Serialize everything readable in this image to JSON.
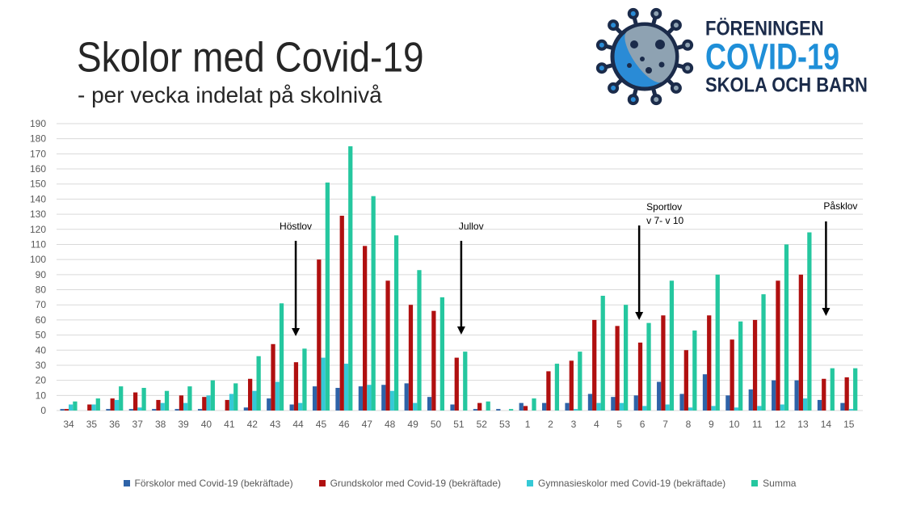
{
  "colors": {
    "grid": "#d9d9d9",
    "axis_text": "#595959",
    "annotation": "#000000",
    "logo_navy": "#1b2b4a",
    "logo_blue": "#1f8fd8",
    "logo_grey": "#8ea2b2"
  },
  "logo": {
    "icon": "virus-icon",
    "line1": "FÖRENINGEN",
    "line2": "COVID-19",
    "line3": "SKOLA OCH BARN"
  },
  "chart_data": {
    "type": "bar",
    "title": "Skolor med Covid-19",
    "subtitle": "- per vecka indelat på skolnivå",
    "xlabel": "",
    "ylabel": "",
    "ylim": [
      0,
      190
    ],
    "yticks": [
      0,
      10,
      20,
      30,
      40,
      50,
      60,
      70,
      80,
      90,
      100,
      110,
      120,
      130,
      140,
      150,
      160,
      170,
      180,
      190
    ],
    "grid": true,
    "legend": "bottom",
    "categories": [
      "34",
      "35",
      "36",
      "37",
      "38",
      "39",
      "40",
      "41",
      "42",
      "43",
      "44",
      "45",
      "46",
      "47",
      "48",
      "49",
      "50",
      "51",
      "52",
      "53",
      "1",
      "2",
      "3",
      "4",
      "5",
      "6",
      "7",
      "8",
      "9",
      "10",
      "11",
      "12",
      "13",
      "14",
      "15"
    ],
    "series": [
      {
        "name": "Förskolor med Covid-19 (bekräftade)",
        "color": "#2e63a8",
        "values": [
          1,
          0,
          1,
          1,
          1,
          1,
          1,
          0,
          2,
          8,
          4,
          16,
          15,
          16,
          17,
          18,
          9,
          4,
          1,
          1,
          5,
          5,
          5,
          11,
          9,
          10,
          19,
          11,
          24,
          10,
          14,
          20,
          20,
          7,
          5
        ]
      },
      {
        "name": "Grundskolor med Covid-19 (bekräftade)",
        "color": "#b01010",
        "values": [
          1,
          4,
          8,
          12,
          7,
          10,
          9,
          7,
          21,
          44,
          32,
          100,
          129,
          109,
          86,
          70,
          66,
          35,
          5,
          0,
          3,
          26,
          33,
          60,
          56,
          45,
          63,
          40,
          63,
          47,
          60,
          86,
          90,
          21,
          22
        ]
      },
      {
        "name": "Gymnasieskolor med Covid-19 (bekräftade)",
        "color": "#35c9d6",
        "values": [
          4,
          4,
          7,
          2,
          5,
          5,
          10,
          11,
          13,
          19,
          5,
          35,
          31,
          17,
          13,
          5,
          0,
          0,
          0,
          0,
          0,
          0,
          1,
          5,
          5,
          3,
          4,
          2,
          3,
          2,
          3,
          4,
          8,
          0,
          1
        ]
      },
      {
        "name": "Summa",
        "color": "#25c79f",
        "values": [
          6,
          8,
          16,
          15,
          13,
          16,
          20,
          18,
          36,
          71,
          41,
          151,
          175,
          142,
          116,
          93,
          75,
          39,
          6,
          1,
          8,
          31,
          39,
          76,
          70,
          58,
          86,
          53,
          90,
          59,
          77,
          110,
          118,
          28,
          28
        ]
      }
    ],
    "annotations": [
      {
        "lines": [
          "Höstlov"
        ],
        "week": 44
      },
      {
        "lines": [
          "Jullov"
        ],
        "week": 51
      },
      {
        "lines": [
          "Sportlov",
          "v 7- v 10"
        ],
        "week": 6
      },
      {
        "lines": [
          "Påsklov"
        ],
        "week": 14
      }
    ]
  }
}
